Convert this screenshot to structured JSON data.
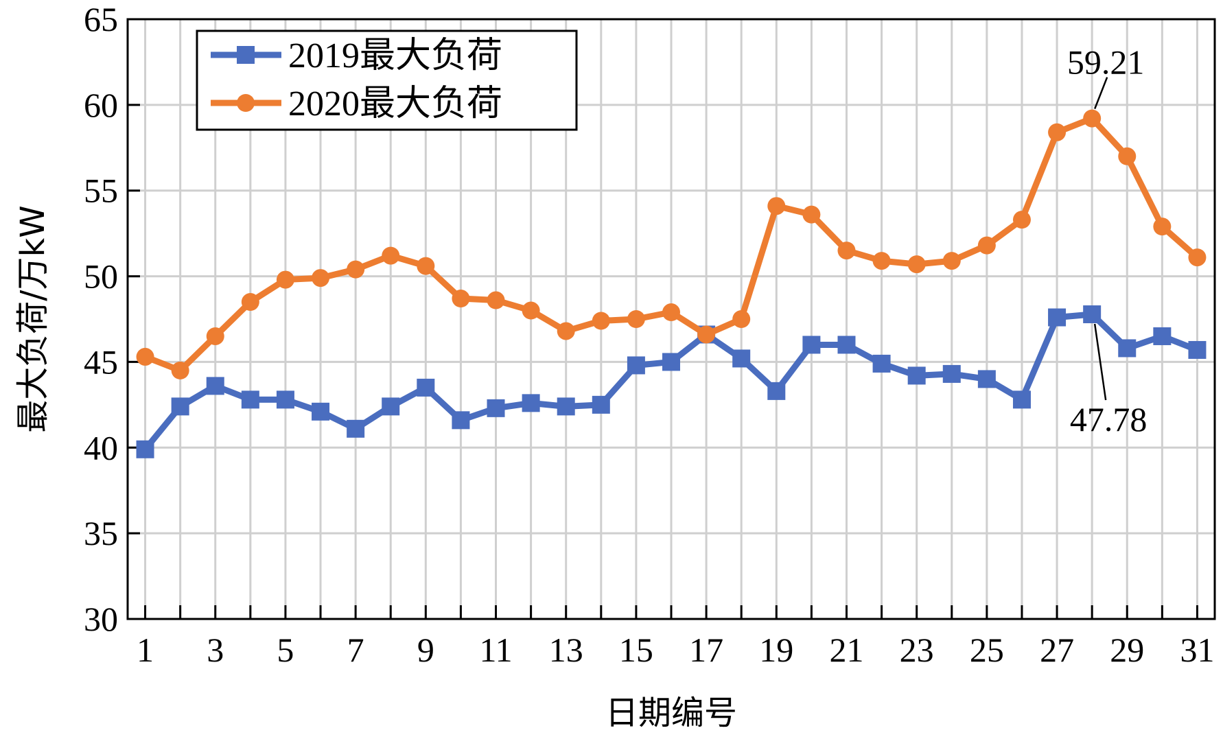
{
  "chart_data": {
    "type": "line",
    "xlabel": "日期编号",
    "ylabel": "最大负荷/万kW",
    "x": [
      1,
      2,
      3,
      4,
      5,
      6,
      7,
      8,
      9,
      10,
      11,
      12,
      13,
      14,
      15,
      16,
      17,
      18,
      19,
      20,
      21,
      22,
      23,
      24,
      25,
      26,
      27,
      28,
      29,
      30,
      31
    ],
    "xticks": [
      1,
      3,
      5,
      7,
      9,
      11,
      13,
      15,
      17,
      19,
      21,
      23,
      25,
      27,
      29,
      31
    ],
    "ylim": [
      30,
      65
    ],
    "yticks": [
      30,
      35,
      40,
      45,
      50,
      55,
      60,
      65
    ],
    "grid": true,
    "legend_position": "top-left",
    "series": [
      {
        "name": "2019最大负荷",
        "color": "#4a6dbf",
        "marker": "square",
        "values": [
          39.9,
          42.4,
          43.6,
          42.8,
          42.8,
          42.1,
          41.1,
          42.4,
          43.5,
          41.6,
          42.3,
          42.6,
          42.4,
          42.5,
          44.8,
          45.0,
          46.6,
          45.2,
          43.3,
          46.0,
          46.0,
          44.9,
          44.2,
          44.3,
          44.0,
          42.8,
          47.6,
          47.78,
          45.8,
          46.5,
          45.7
        ]
      },
      {
        "name": "2020最大负荷",
        "color": "#ed7d31",
        "marker": "circle",
        "values": [
          45.3,
          44.5,
          46.5,
          48.5,
          49.8,
          49.9,
          50.4,
          51.2,
          50.6,
          48.7,
          48.6,
          48.0,
          46.8,
          47.4,
          47.5,
          47.9,
          46.6,
          47.5,
          54.1,
          53.6,
          51.5,
          50.9,
          50.7,
          50.9,
          51.8,
          53.3,
          58.4,
          59.21,
          57.0,
          52.9,
          51.1
        ]
      }
    ],
    "annotations": [
      {
        "text": "59.21",
        "series": 1,
        "x": 28
      },
      {
        "text": "47.78",
        "series": 0,
        "x": 28
      }
    ]
  }
}
